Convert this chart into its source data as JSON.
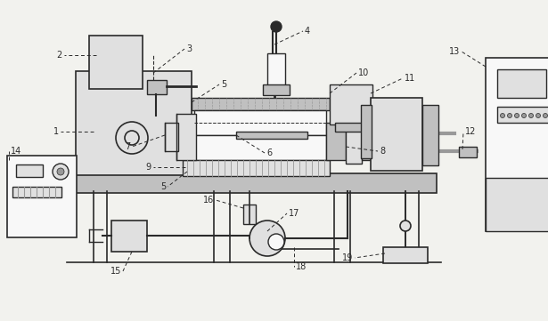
{
  "bg_color": "#f2f2ee",
  "line_color": "#2a2a2a",
  "fill_light": "#e0e0e0",
  "fill_dark": "#999999",
  "fill_mid": "#c0c0c0",
  "fill_white": "#f8f8f8",
  "lw": 1.0
}
